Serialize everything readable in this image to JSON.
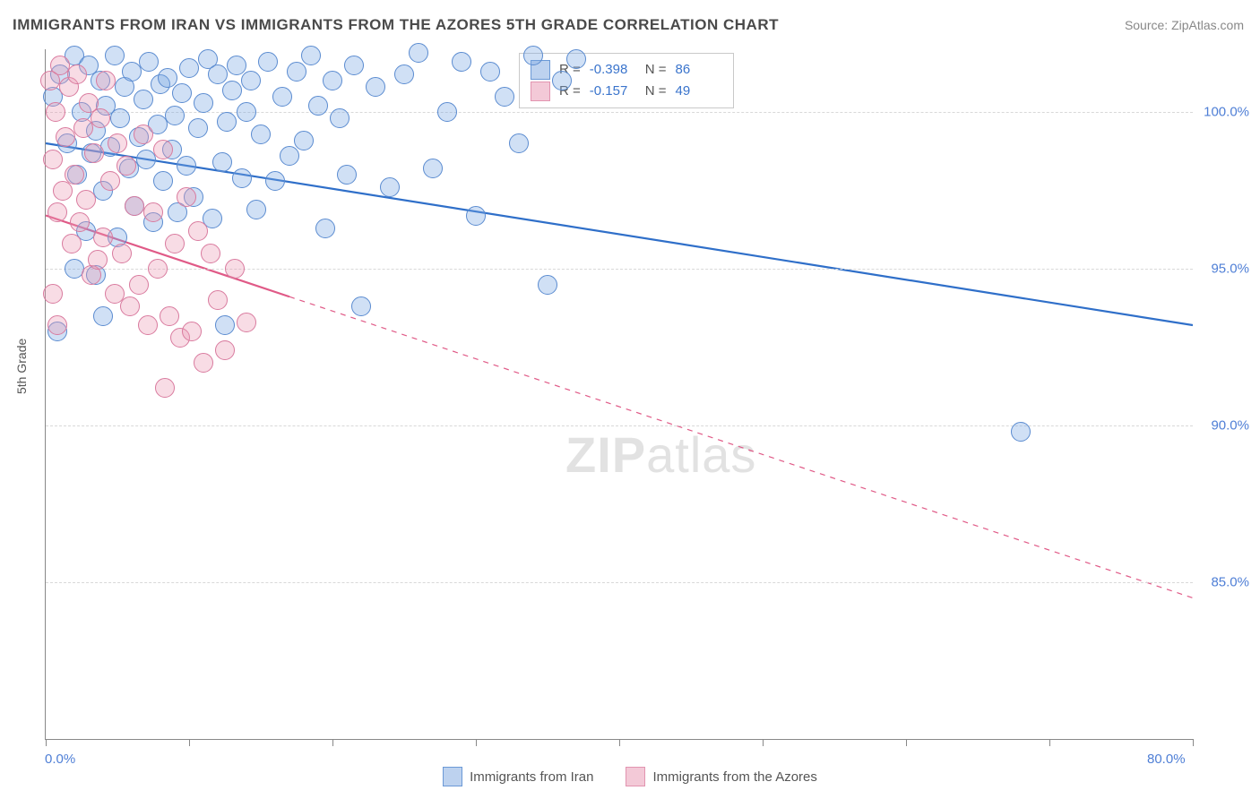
{
  "title": "IMMIGRANTS FROM IRAN VS IMMIGRANTS FROM THE AZORES 5TH GRADE CORRELATION CHART",
  "source": "Source: ZipAtlas.com",
  "watermark": {
    "bold": "ZIP",
    "rest": "atlas"
  },
  "ylabel": "5th Grade",
  "chart": {
    "type": "scatter",
    "background_color": "#ffffff",
    "grid_color": "#d8d8d8",
    "axis_color": "#888888",
    "xlim": [
      0,
      80
    ],
    "ylim": [
      80,
      102
    ],
    "xticks": [
      0,
      10,
      20,
      30,
      40,
      50,
      60,
      70,
      80
    ],
    "xtick_labels_shown": {
      "0": "0.0%",
      "80": "80.0%"
    },
    "yticks": [
      85,
      90,
      95,
      100
    ],
    "ytick_labels": {
      "85": "85.0%",
      "90": "90.0%",
      "95": "95.0%",
      "100": "100.0%"
    },
    "tick_label_color": "#4f7fd6",
    "marker_radius": 10,
    "marker_stroke_width": 1.2,
    "trend_solid_width": 2.2,
    "trend_dash_width": 1.2,
    "trend_dash_pattern": "6 6"
  },
  "series": [
    {
      "name": "Immigrants from Iran",
      "fill": "rgba(120,165,225,0.35)",
      "stroke": "#5a8bd0",
      "swatch_fill": "#bdd2ef",
      "swatch_border": "#6b99d6",
      "trend_color": "#2f6fc9",
      "trend": {
        "x1": 0,
        "y1": 99.0,
        "x2": 80,
        "y2": 93.2,
        "dashed_after_x": null
      },
      "stats": {
        "R": "-0.398",
        "N": "86"
      },
      "points": [
        [
          0.5,
          100.5
        ],
        [
          1.0,
          101.2
        ],
        [
          1.5,
          99.0
        ],
        [
          2.0,
          101.8
        ],
        [
          2.2,
          98.0
        ],
        [
          2.5,
          100.0
        ],
        [
          2.8,
          96.2
        ],
        [
          3.0,
          101.5
        ],
        [
          3.2,
          98.7
        ],
        [
          3.5,
          99.4
        ],
        [
          3.8,
          101.0
        ],
        [
          4.0,
          97.5
        ],
        [
          4.2,
          100.2
        ],
        [
          4.5,
          98.9
        ],
        [
          4.8,
          101.8
        ],
        [
          5.0,
          96.0
        ],
        [
          5.2,
          99.8
        ],
        [
          5.5,
          100.8
        ],
        [
          5.8,
          98.2
        ],
        [
          6.0,
          101.3
        ],
        [
          6.2,
          97.0
        ],
        [
          6.5,
          99.2
        ],
        [
          6.8,
          100.4
        ],
        [
          7.0,
          98.5
        ],
        [
          7.2,
          101.6
        ],
        [
          7.5,
          96.5
        ],
        [
          7.8,
          99.6
        ],
        [
          8.0,
          100.9
        ],
        [
          8.2,
          97.8
        ],
        [
          8.5,
          101.1
        ],
        [
          8.8,
          98.8
        ],
        [
          9.0,
          99.9
        ],
        [
          9.2,
          96.8
        ],
        [
          9.5,
          100.6
        ],
        [
          9.8,
          98.3
        ],
        [
          10.0,
          101.4
        ],
        [
          10.3,
          97.3
        ],
        [
          10.6,
          99.5
        ],
        [
          11.0,
          100.3
        ],
        [
          11.3,
          101.7
        ],
        [
          11.6,
          96.6
        ],
        [
          12.0,
          101.2
        ],
        [
          12.3,
          98.4
        ],
        [
          12.6,
          99.7
        ],
        [
          13.0,
          100.7
        ],
        [
          13.3,
          101.5
        ],
        [
          13.7,
          97.9
        ],
        [
          14.0,
          100.0
        ],
        [
          14.3,
          101.0
        ],
        [
          14.7,
          96.9
        ],
        [
          15.0,
          99.3
        ],
        [
          15.5,
          101.6
        ],
        [
          16.0,
          97.8
        ],
        [
          16.5,
          100.5
        ],
        [
          17.0,
          98.6
        ],
        [
          17.5,
          101.3
        ],
        [
          18.0,
          99.1
        ],
        [
          18.5,
          101.8
        ],
        [
          19.0,
          100.2
        ],
        [
          19.5,
          96.3
        ],
        [
          20.0,
          101.0
        ],
        [
          20.5,
          99.8
        ],
        [
          21.0,
          98.0
        ],
        [
          21.5,
          101.5
        ],
        [
          22.0,
          93.8
        ],
        [
          23.0,
          100.8
        ],
        [
          24.0,
          97.6
        ],
        [
          25.0,
          101.2
        ],
        [
          26.0,
          101.9
        ],
        [
          27.0,
          98.2
        ],
        [
          28.0,
          100.0
        ],
        [
          29.0,
          101.6
        ],
        [
          30.0,
          96.7
        ],
        [
          31.0,
          101.3
        ],
        [
          32.0,
          100.5
        ],
        [
          33.0,
          99.0
        ],
        [
          34.0,
          101.8
        ],
        [
          35.0,
          94.5
        ],
        [
          36.0,
          101.0
        ],
        [
          37.0,
          101.7
        ],
        [
          68.0,
          89.8
        ],
        [
          4.0,
          93.5
        ],
        [
          12.5,
          93.2
        ],
        [
          2.0,
          95.0
        ],
        [
          0.8,
          93.0
        ],
        [
          3.5,
          94.8
        ]
      ]
    },
    {
      "name": "Immigrants from the Azores",
      "fill": "rgba(235,155,180,0.35)",
      "stroke": "#d97a9e",
      "swatch_fill": "#f3c9d7",
      "swatch_border": "#e294b0",
      "trend_color": "#e05a87",
      "trend": {
        "x1": 0,
        "y1": 96.7,
        "x2": 80,
        "y2": 84.5,
        "dashed_after_x": 17
      },
      "stats": {
        "R": "-0.157",
        "N": "49"
      },
      "points": [
        [
          0.3,
          101.0
        ],
        [
          0.5,
          98.5
        ],
        [
          0.7,
          100.0
        ],
        [
          0.8,
          96.8
        ],
        [
          1.0,
          101.5
        ],
        [
          1.2,
          97.5
        ],
        [
          1.4,
          99.2
        ],
        [
          1.6,
          100.8
        ],
        [
          1.8,
          95.8
        ],
        [
          2.0,
          98.0
        ],
        [
          2.2,
          101.2
        ],
        [
          2.4,
          96.5
        ],
        [
          2.6,
          99.5
        ],
        [
          2.8,
          97.2
        ],
        [
          3.0,
          100.3
        ],
        [
          3.2,
          94.8
        ],
        [
          3.4,
          98.7
        ],
        [
          3.6,
          95.3
        ],
        [
          3.8,
          99.8
        ],
        [
          4.0,
          96.0
        ],
        [
          4.2,
          101.0
        ],
        [
          4.5,
          97.8
        ],
        [
          4.8,
          94.2
        ],
        [
          5.0,
          99.0
        ],
        [
          5.3,
          95.5
        ],
        [
          5.6,
          98.3
        ],
        [
          5.9,
          93.8
        ],
        [
          6.2,
          97.0
        ],
        [
          6.5,
          94.5
        ],
        [
          6.8,
          99.3
        ],
        [
          7.1,
          93.2
        ],
        [
          7.5,
          96.8
        ],
        [
          7.8,
          95.0
        ],
        [
          8.2,
          98.8
        ],
        [
          8.6,
          93.5
        ],
        [
          9.0,
          95.8
        ],
        [
          9.4,
          92.8
        ],
        [
          9.8,
          97.3
        ],
        [
          10.2,
          93.0
        ],
        [
          10.6,
          96.2
        ],
        [
          11.0,
          92.0
        ],
        [
          11.5,
          95.5
        ],
        [
          12.0,
          94.0
        ],
        [
          12.5,
          92.4
        ],
        [
          13.2,
          95.0
        ],
        [
          14.0,
          93.3
        ],
        [
          8.3,
          91.2
        ],
        [
          0.5,
          94.2
        ],
        [
          0.8,
          93.2
        ]
      ]
    }
  ],
  "legend_top": {
    "r_label": "R =",
    "n_label": "N ="
  },
  "legend_bottom": {
    "items": [
      "Immigrants from Iran",
      "Immigrants from the Azores"
    ]
  }
}
